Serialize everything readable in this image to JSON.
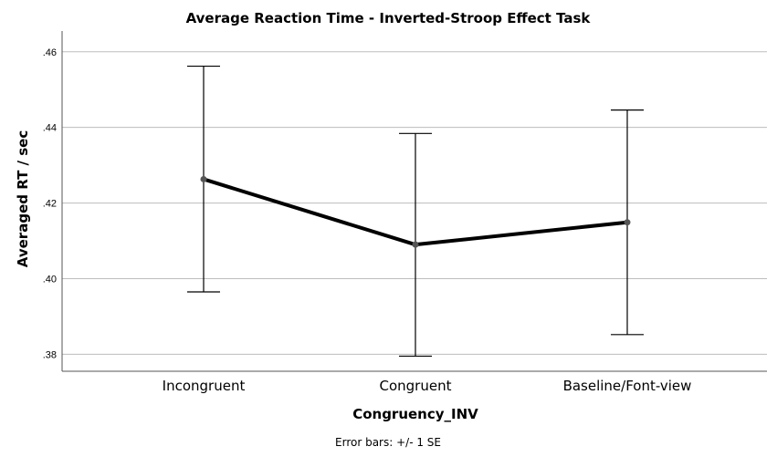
{
  "chart_data": {
    "type": "line",
    "title": "Average Reaction Time - Inverted-Stroop Effect Task",
    "xlabel": "Congruency_INV",
    "ylabel": "Averaged RT / sec",
    "categories": [
      "Incongruent",
      "Congruent",
      "Baseline/Font-view"
    ],
    "series": [
      {
        "values": [
          0.4263,
          0.409,
          0.4149
        ],
        "error_low": [
          0.3965,
          0.3795,
          0.3852
        ],
        "error_high": [
          0.4562,
          0.4384,
          0.4446
        ]
      }
    ],
    "ylim": [
      0.3755,
      0.4655
    ],
    "yticks": [
      0.38,
      0.4,
      0.42,
      0.44,
      0.46
    ],
    "ytick_labels": [
      ".38",
      ".40",
      ".42",
      ".44",
      ".46"
    ],
    "grid": true,
    "footnote": "Error bars: +/- 1 SE",
    "colors": {
      "line": "#000000",
      "marker": "#555555",
      "grid": "#bdbdbd",
      "axis": "#555555"
    }
  }
}
